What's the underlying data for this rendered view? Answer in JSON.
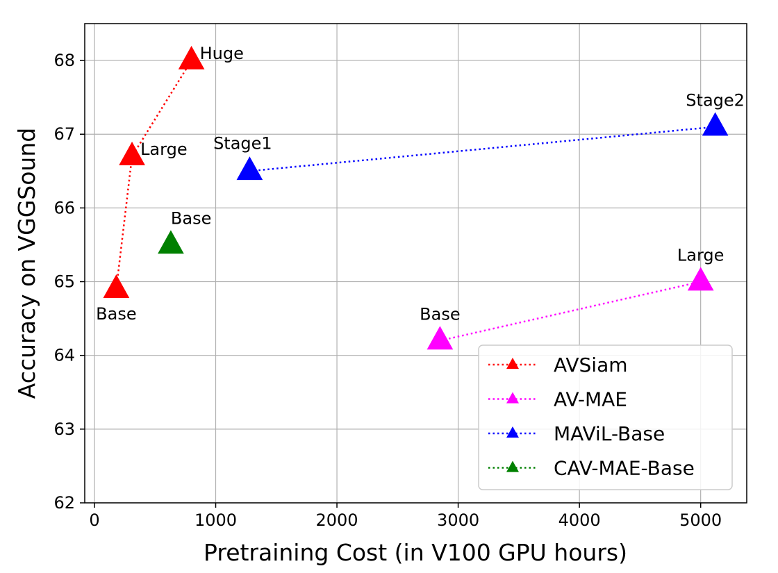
{
  "chart_data": {
    "type": "scatter",
    "title": "",
    "xlabel": "Pretraining Cost (in V100 GPU hours)",
    "ylabel": "Accuracy on VGGSound",
    "xlim": [
      -80,
      5380
    ],
    "ylim": [
      62,
      68.5
    ],
    "xticks": [
      0,
      1000,
      2000,
      3000,
      4000,
      5000
    ],
    "yticks": [
      62,
      63,
      64,
      65,
      66,
      67,
      68
    ],
    "grid": true,
    "legend_position": "lower-right",
    "series": [
      {
        "name": "AVSiam",
        "color": "#ff0000",
        "connected": true,
        "points": [
          {
            "x": 180,
            "y": 64.9,
            "label": "Base",
            "label_pos": "below"
          },
          {
            "x": 310,
            "y": 66.7,
            "label": "Large",
            "label_pos": "right"
          },
          {
            "x": 800,
            "y": 68.0,
            "label": "Huge",
            "label_pos": "right"
          }
        ]
      },
      {
        "name": "AV-MAE",
        "color": "#ff00ff",
        "connected": true,
        "points": [
          {
            "x": 2850,
            "y": 64.2,
            "label": "Base",
            "label_pos": "above"
          },
          {
            "x": 5000,
            "y": 65.0,
            "label": "Large",
            "label_pos": "above"
          }
        ]
      },
      {
        "name": "MAViL-Base",
        "color": "#0000ff",
        "connected": true,
        "points": [
          {
            "x": 1280,
            "y": 66.5,
            "label": "Stage1",
            "label_pos": "above-left"
          },
          {
            "x": 5120,
            "y": 67.1,
            "label": "Stage2",
            "label_pos": "above"
          }
        ]
      },
      {
        "name": "CAV-MAE-Base",
        "color": "#008000",
        "connected": true,
        "points": [
          {
            "x": 630,
            "y": 65.5,
            "label": "Base",
            "label_pos": "above-right"
          }
        ]
      }
    ]
  }
}
